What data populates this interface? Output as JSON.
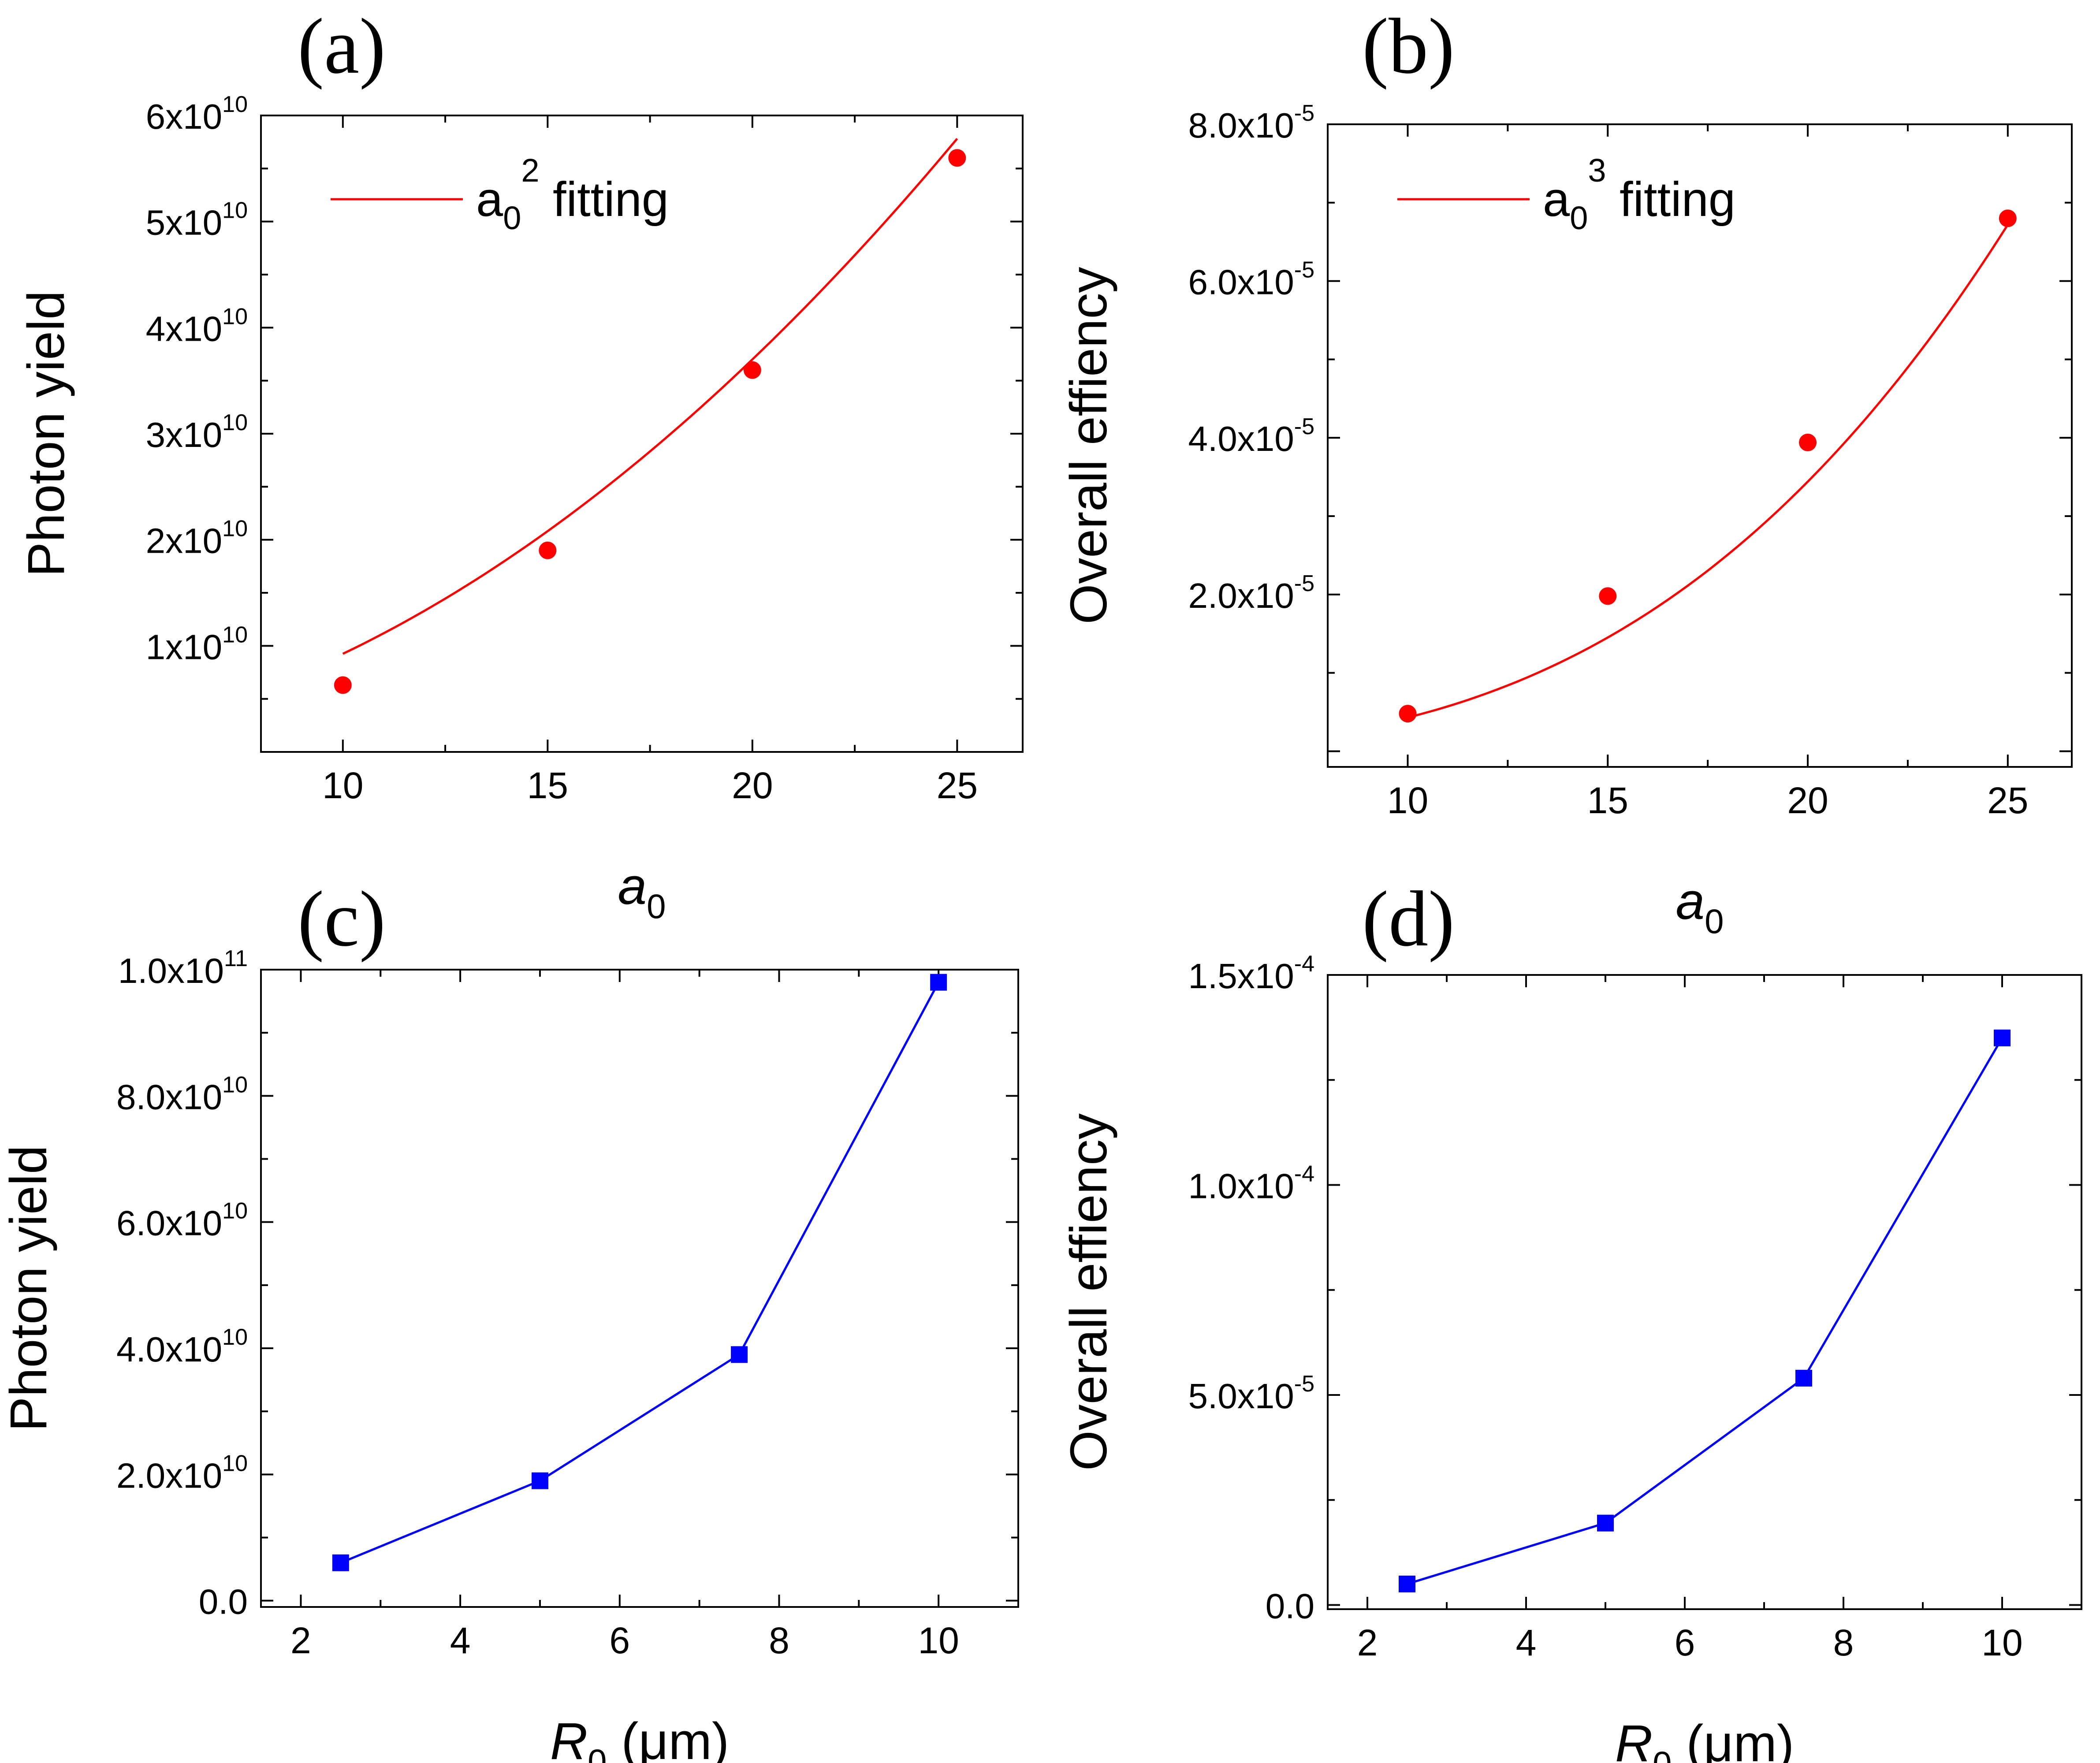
{
  "colors": {
    "fit": "#ff0000",
    "red_points": "#ff0000",
    "blue_series": "#0000ff",
    "axis": "#000000"
  },
  "chart_data": [
    {
      "id": "a",
      "panel_label": "(a)",
      "type": "scatter",
      "xlabel": "a",
      "xlabel_sub": "0",
      "ylabel": "Photon yield",
      "xlim": [
        8,
        26.6
      ],
      "ylim": [
        0,
        60000000000.0
      ],
      "xticks": [
        10,
        15,
        20,
        25
      ],
      "xtick_labels": [
        "10",
        "15",
        "20",
        "25"
      ],
      "yticks": [
        10000000000.0,
        20000000000.0,
        30000000000.0,
        40000000000.0,
        50000000000.0,
        60000000000.0
      ],
      "ytick_labels": [
        {
          "mantissa": "1x10",
          "exp": "10"
        },
        {
          "mantissa": "2x10",
          "exp": "10"
        },
        {
          "mantissa": "3x10",
          "exp": "10"
        },
        {
          "mantissa": "4x10",
          "exp": "10"
        },
        {
          "mantissa": "5x10",
          "exp": "10"
        },
        {
          "mantissa": "6x10",
          "exp": "10"
        }
      ],
      "series": [
        {
          "name": "data",
          "kind": "points",
          "marker": "circle",
          "x": [
            10,
            15,
            20,
            25
          ],
          "y": [
            6300000000.0,
            19000000000.0,
            36000000000.0,
            56000000000.0
          ]
        },
        {
          "name": "a0^2 fitting",
          "kind": "fit",
          "power": 2,
          "coef": 92500000.0,
          "x_range": [
            10,
            25
          ]
        }
      ],
      "legend": {
        "base": "a",
        "sub": "0",
        "sup": "2",
        "text": "fitting",
        "position": "top-left"
      }
    },
    {
      "id": "b",
      "panel_label": "(b)",
      "type": "scatter",
      "xlabel": "a",
      "xlabel_sub": "0",
      "ylabel": "Overall effiency",
      "xlim": [
        8,
        26.6
      ],
      "ylim": [
        -2e-06,
        8e-05
      ],
      "xticks": [
        10,
        15,
        20,
        25
      ],
      "xtick_labels": [
        "10",
        "15",
        "20",
        "25"
      ],
      "yticks": [
        2e-05,
        4e-05,
        6e-05,
        8e-05
      ],
      "ytick_labels": [
        {
          "mantissa": "2.0x10",
          "exp": "-5"
        },
        {
          "mantissa": "4.0x10",
          "exp": "-5"
        },
        {
          "mantissa": "6.0x10",
          "exp": "-5"
        },
        {
          "mantissa": "8.0x10",
          "exp": "-5"
        }
      ],
      "series": [
        {
          "name": "data",
          "kind": "points",
          "marker": "circle",
          "x": [
            10,
            15,
            20,
            25
          ],
          "y": [
            4.8e-06,
            1.98e-05,
            3.94e-05,
            6.8e-05
          ]
        },
        {
          "name": "a0^3 fitting",
          "kind": "fit",
          "power": 3,
          "coef": 4.3e-09,
          "x_range": [
            10,
            25
          ]
        }
      ],
      "legend": {
        "base": "a",
        "sub": "0",
        "sup": "3",
        "text": "fitting",
        "position": "top-left"
      }
    },
    {
      "id": "c",
      "panel_label": "(c)",
      "type": "line",
      "xlabel": "R",
      "xlabel_sub": "0",
      "xlabel_unit": " (μm)",
      "ylabel": "Photon yield",
      "xlim": [
        1.5,
        11
      ],
      "ylim": [
        -1000000000.0,
        100000000000.0
      ],
      "xticks": [
        2,
        4,
        6,
        8,
        10
      ],
      "xtick_labels": [
        "2",
        "4",
        "6",
        "8",
        "10"
      ],
      "yticks": [
        0,
        20000000000.0,
        40000000000.0,
        60000000000.0,
        80000000000.0,
        100000000000.0
      ],
      "ytick_labels": [
        {
          "mantissa": "0.0",
          "exp": ""
        },
        {
          "mantissa": "2.0x10",
          "exp": "10"
        },
        {
          "mantissa": "4.0x10",
          "exp": "10"
        },
        {
          "mantissa": "6.0x10",
          "exp": "10"
        },
        {
          "mantissa": "8.0x10",
          "exp": "10"
        },
        {
          "mantissa": "1.0x10",
          "exp": "11"
        }
      ],
      "series": [
        {
          "name": "data",
          "kind": "line-square",
          "x": [
            2.5,
            5,
            7.5,
            10
          ],
          "y": [
            6000000000.0,
            19000000000.0,
            39000000000.0,
            98000000000.0
          ]
        }
      ]
    },
    {
      "id": "d",
      "panel_label": "(d)",
      "type": "line",
      "xlabel": "R",
      "xlabel_sub": "0",
      "xlabel_unit": " (μm)",
      "ylabel": "Overall effiency",
      "xlim": [
        1.5,
        11
      ],
      "ylim": [
        -1e-06,
        0.00015
      ],
      "xticks": [
        2,
        4,
        6,
        8,
        10
      ],
      "xtick_labels": [
        "2",
        "4",
        "6",
        "8",
        "10"
      ],
      "yticks": [
        0,
        5e-05,
        0.0001,
        0.00015
      ],
      "ytick_labels": [
        {
          "mantissa": "0.0",
          "exp": ""
        },
        {
          "mantissa": "5.0x10",
          "exp": "-5"
        },
        {
          "mantissa": "1.0x10",
          "exp": "-4"
        },
        {
          "mantissa": "1.5x10",
          "exp": "-4"
        }
      ],
      "series": [
        {
          "name": "data",
          "kind": "line-square",
          "x": [
            2.5,
            5,
            7.5,
            10
          ],
          "y": [
            5e-06,
            1.95e-05,
            5.4e-05,
            0.000135
          ]
        }
      ]
    }
  ]
}
